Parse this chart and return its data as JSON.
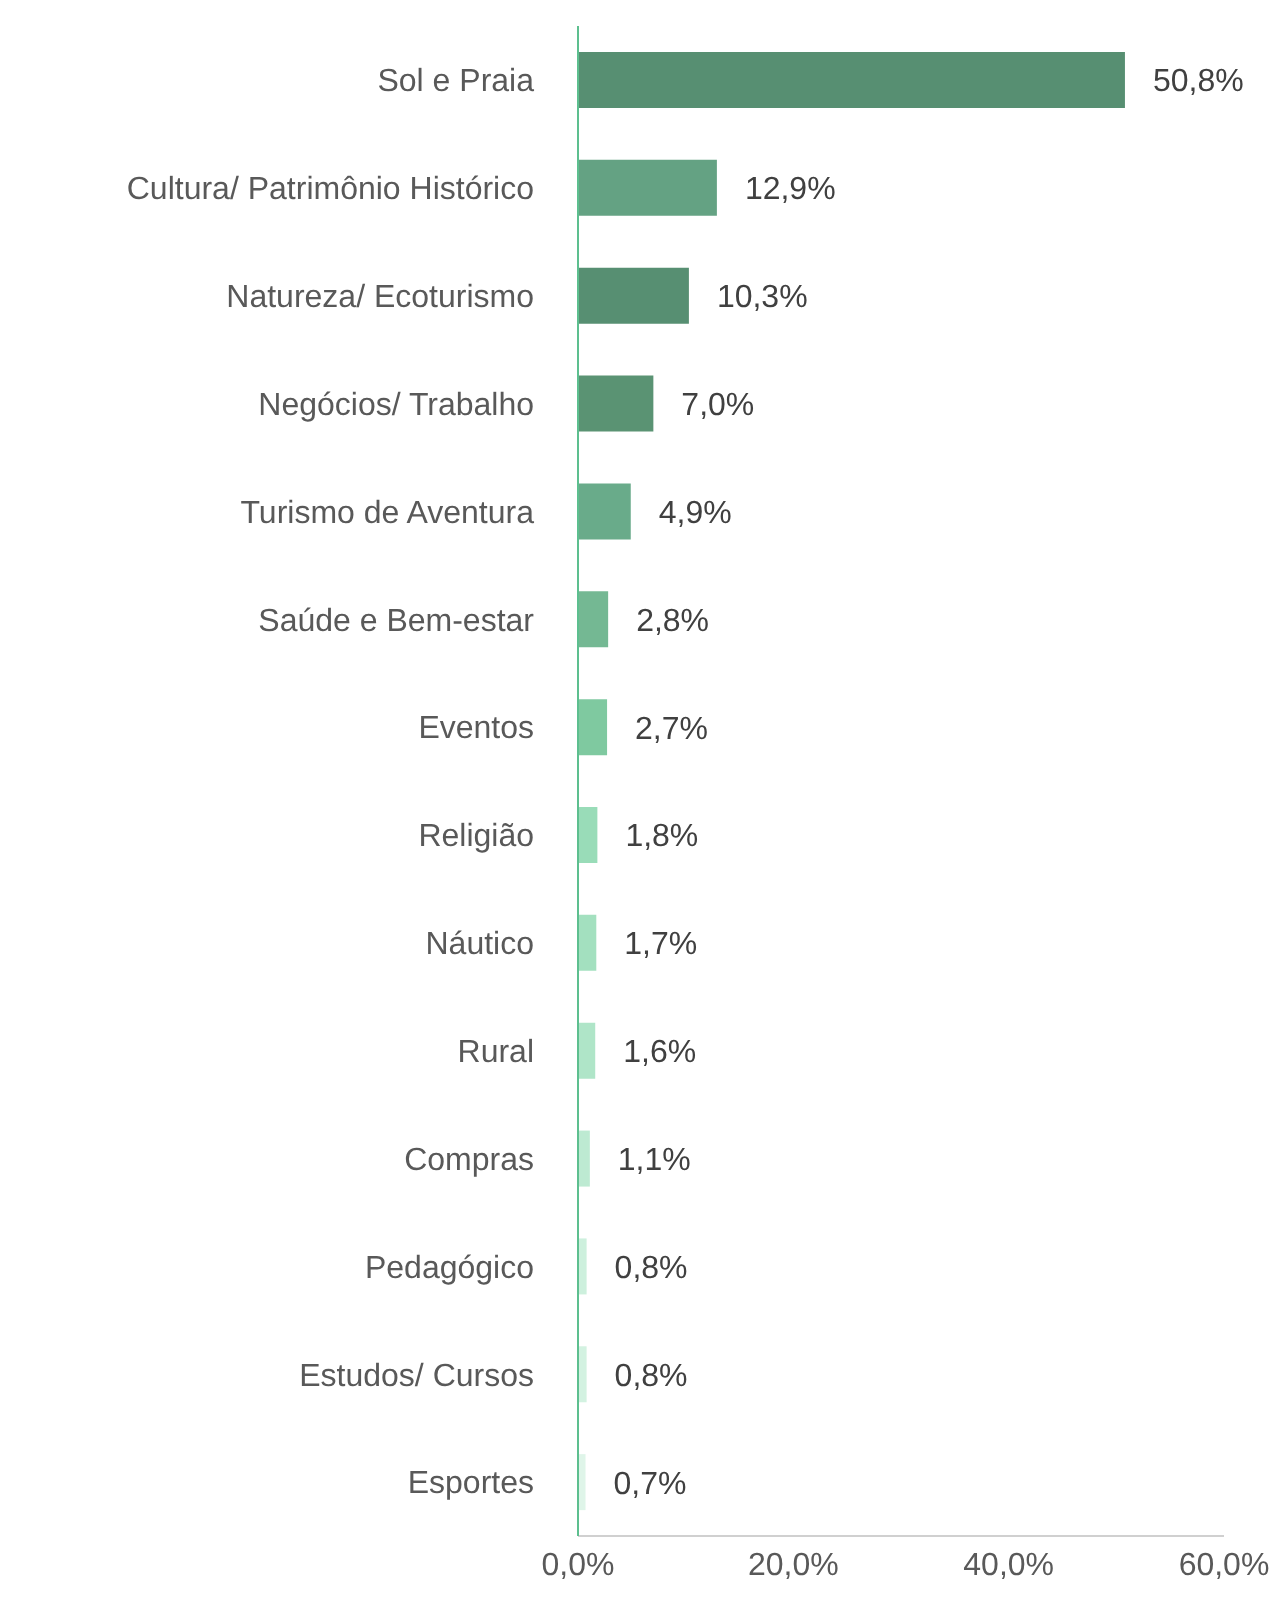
{
  "chart_data": {
    "type": "bar",
    "orientation": "horizontal",
    "categories": [
      "Sol e Praia",
      "Cultura/ Patrimônio Histórico",
      "Natureza/ Ecoturismo",
      "Negócios/ Trabalho",
      "Turismo de Aventura",
      "Saúde e Bem-estar",
      "Eventos",
      "Religião",
      "Náutico",
      "Rural",
      "Compras",
      "Pedagógico",
      "Estudos/ Cursos",
      "Esportes"
    ],
    "values": [
      50.8,
      12.9,
      10.3,
      7.0,
      4.9,
      2.8,
      2.7,
      1.8,
      1.7,
      1.6,
      1.1,
      0.8,
      0.8,
      0.7
    ],
    "value_labels": [
      "50,8%",
      "12,9%",
      "10,3%",
      "7,0%",
      "4,9%",
      "2,8%",
      "2,7%",
      "1,8%",
      "1,7%",
      "1,6%",
      "1,1%",
      "0,8%",
      "0,8%",
      "0,7%"
    ],
    "colors": [
      "#578f72",
      "#64a283",
      "#578f72",
      "#5a9373",
      "#69ab8a",
      "#74b893",
      "#7fc9a0",
      "#99dcb8",
      "#a3e0bf",
      "#afe5c8",
      "#bdead2",
      "#cdf0dd",
      "#d3f2e1",
      "#dff5e9"
    ],
    "xlim": [
      0,
      60
    ],
    "xticks": [
      {
        "value": 0,
        "label": "0,0%"
      },
      {
        "value": 20,
        "label": "20,0%"
      },
      {
        "value": 40,
        "label": "40,0%"
      },
      {
        "value": 60,
        "label": "60,0%"
      }
    ],
    "grid": false,
    "legend": false
  }
}
